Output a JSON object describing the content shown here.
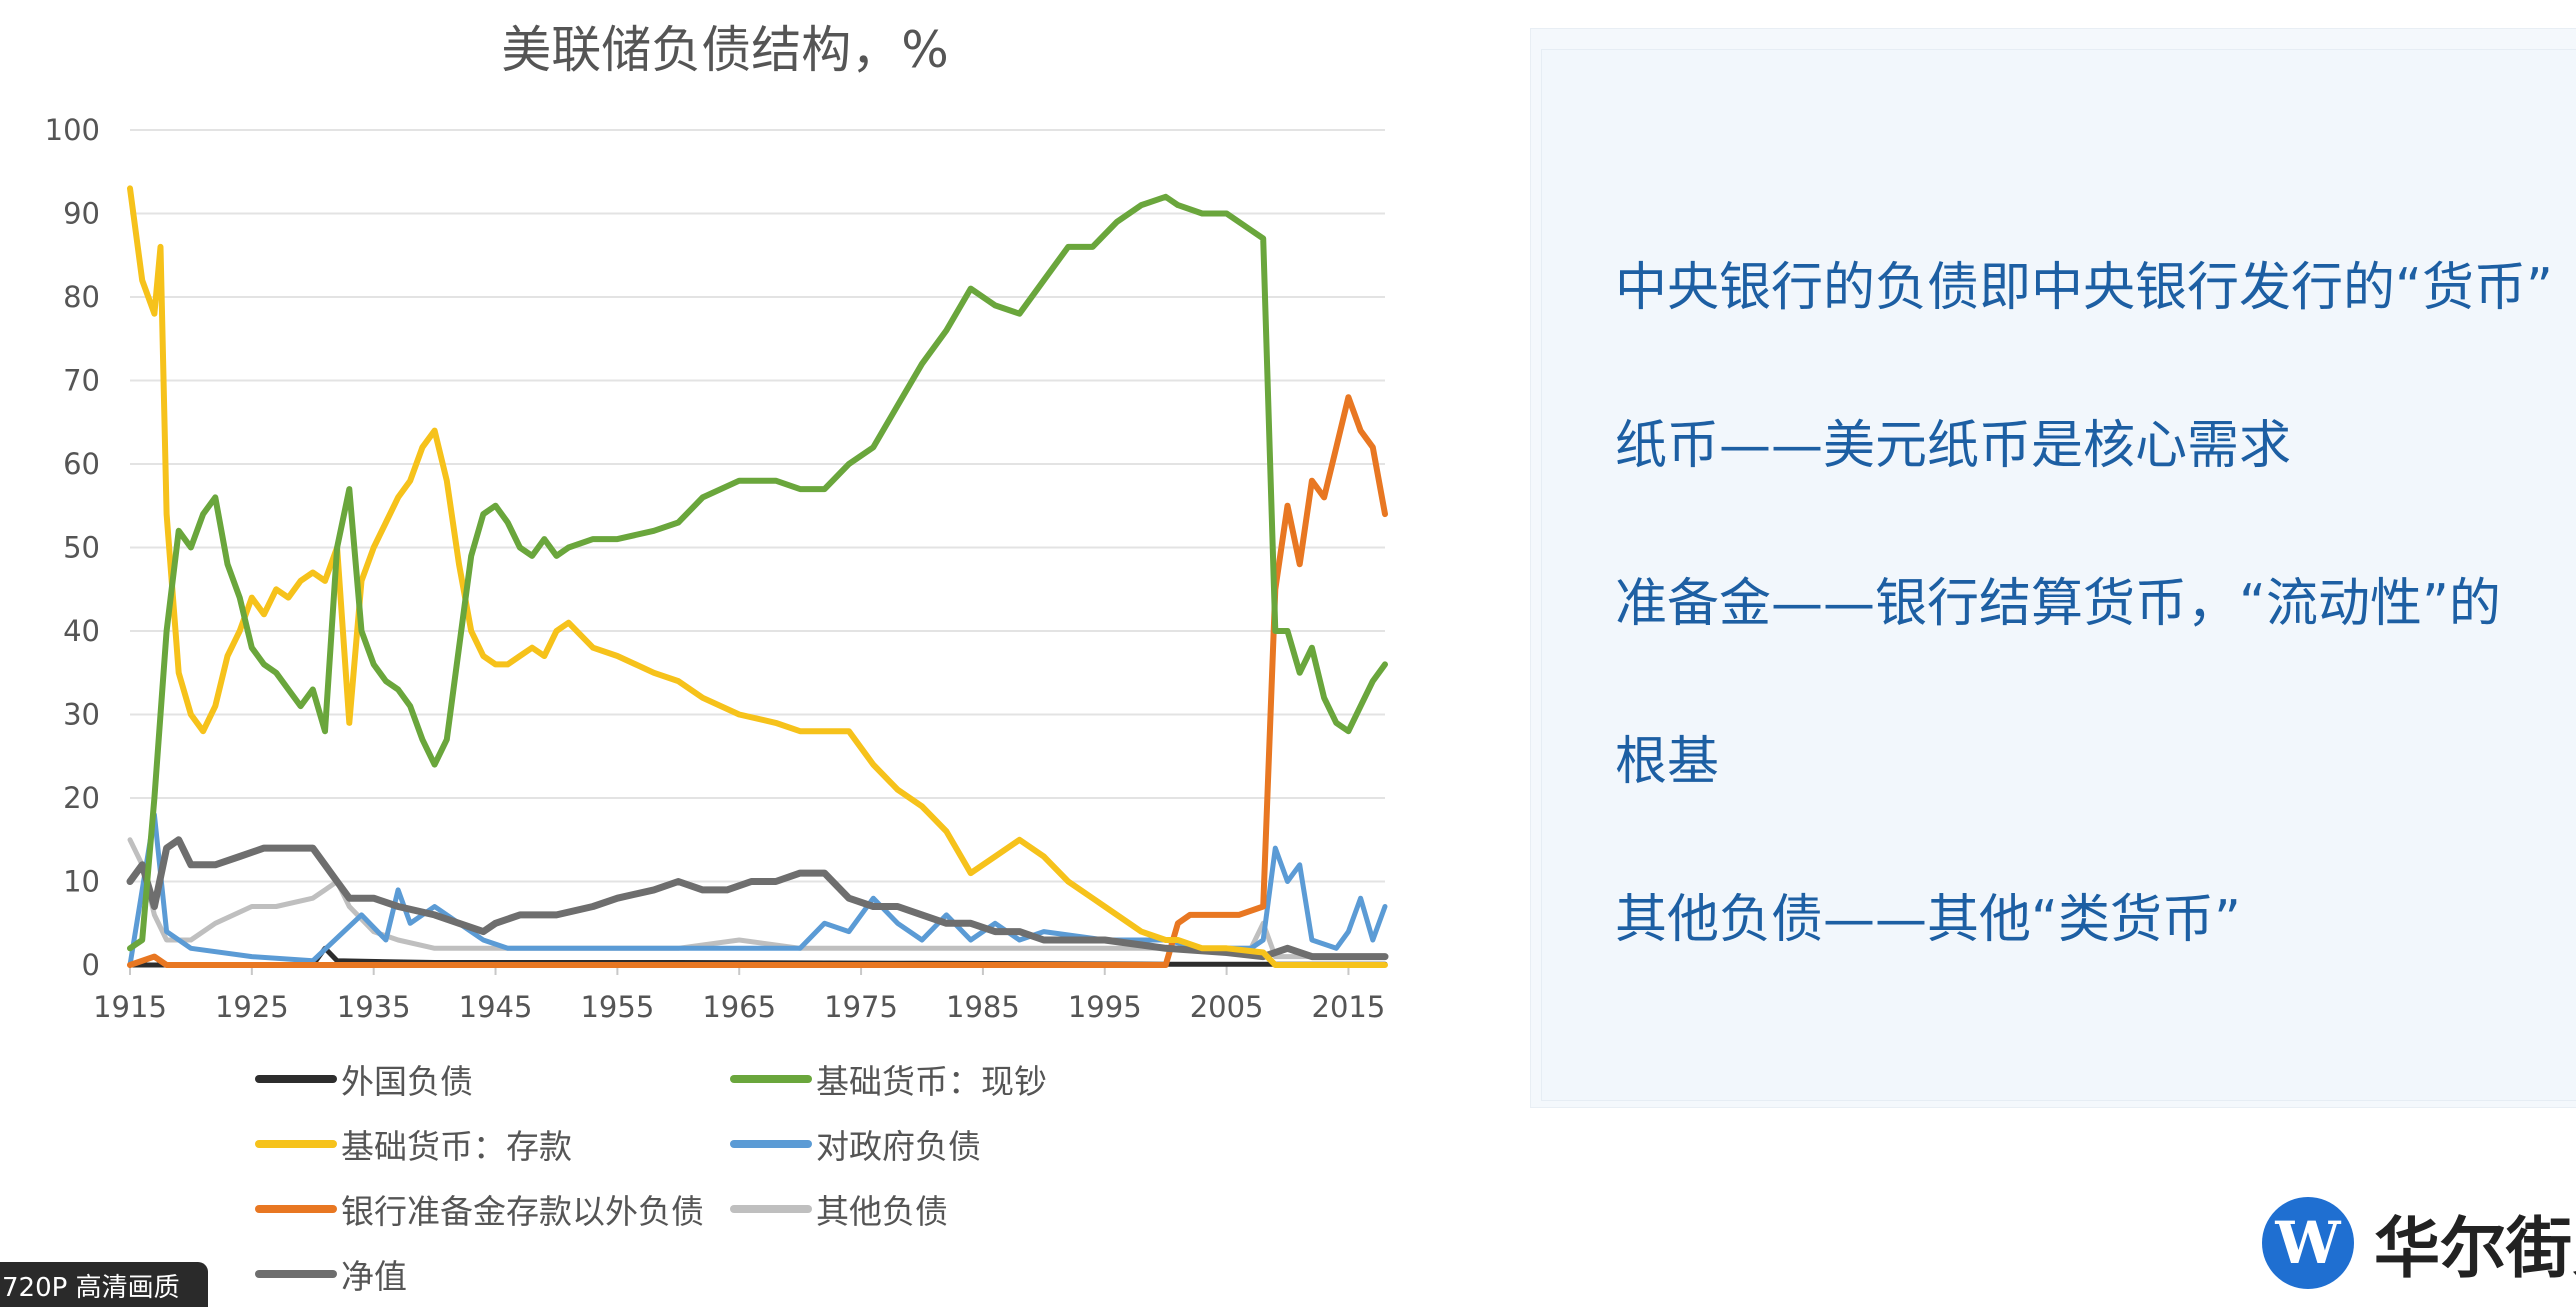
{
  "chart_data": {
    "type": "line",
    "title": "美联储负债结构，%",
    "xlabel": "",
    "ylabel": "",
    "xlim": [
      1915,
      2018
    ],
    "ylim": [
      0,
      100
    ],
    "x_ticks": [
      "1915",
      "1925",
      "1935",
      "1945",
      "1955",
      "1965",
      "1975",
      "1985",
      "1995",
      "2005",
      "2015"
    ],
    "y_ticks": [
      "0",
      "10",
      "20",
      "30",
      "40",
      "50",
      "60",
      "70",
      "80",
      "90",
      "100"
    ],
    "grid": "horizontal",
    "legend_position": "bottom",
    "series": [
      {
        "name": "外国负债",
        "color": "#2d2d2d",
        "points": [
          [
            1915,
            0
          ],
          [
            1930,
            0
          ],
          [
            1931,
            2
          ],
          [
            1932,
            0.5
          ],
          [
            1940,
            0.3
          ],
          [
            1960,
            0.3
          ],
          [
            1980,
            0.2
          ],
          [
            2000,
            0.1
          ],
          [
            2018,
            0.1
          ]
        ]
      },
      {
        "name": "基础货币：现钞",
        "color": "#6aa63c",
        "points": [
          [
            1915,
            2
          ],
          [
            1916,
            3
          ],
          [
            1917,
            20
          ],
          [
            1918,
            40
          ],
          [
            1919,
            52
          ],
          [
            1920,
            50
          ],
          [
            1921,
            54
          ],
          [
            1922,
            56
          ],
          [
            1923,
            48
          ],
          [
            1924,
            44
          ],
          [
            1925,
            38
          ],
          [
            1926,
            36
          ],
          [
            1927,
            35
          ],
          [
            1928,
            33
          ],
          [
            1929,
            31
          ],
          [
            1930,
            33
          ],
          [
            1931,
            28
          ],
          [
            1932,
            50
          ],
          [
            1933,
            57
          ],
          [
            1934,
            40
          ],
          [
            1935,
            36
          ],
          [
            1936,
            34
          ],
          [
            1937,
            33
          ],
          [
            1938,
            31
          ],
          [
            1939,
            27
          ],
          [
            1940,
            24
          ],
          [
            1941,
            27
          ],
          [
            1942,
            38
          ],
          [
            1943,
            49
          ],
          [
            1944,
            54
          ],
          [
            1945,
            55
          ],
          [
            1946,
            53
          ],
          [
            1947,
            50
          ],
          [
            1948,
            49
          ],
          [
            1949,
            51
          ],
          [
            1950,
            49
          ],
          [
            1951,
            50
          ],
          [
            1953,
            51
          ],
          [
            1955,
            51
          ],
          [
            1958,
            52
          ],
          [
            1960,
            53
          ],
          [
            1962,
            56
          ],
          [
            1965,
            58
          ],
          [
            1968,
            58
          ],
          [
            1970,
            57
          ],
          [
            1972,
            57
          ],
          [
            1974,
            60
          ],
          [
            1976,
            62
          ],
          [
            1978,
            67
          ],
          [
            1980,
            72
          ],
          [
            1982,
            76
          ],
          [
            1984,
            81
          ],
          [
            1986,
            79
          ],
          [
            1988,
            78
          ],
          [
            1990,
            82
          ],
          [
            1992,
            86
          ],
          [
            1994,
            86
          ],
          [
            1996,
            89
          ],
          [
            1998,
            91
          ],
          [
            2000,
            92
          ],
          [
            2001,
            91
          ],
          [
            2003,
            90
          ],
          [
            2005,
            90
          ],
          [
            2007,
            88
          ],
          [
            2008,
            87
          ],
          [
            2009,
            40
          ],
          [
            2010,
            40
          ],
          [
            2011,
            35
          ],
          [
            2012,
            38
          ],
          [
            2013,
            32
          ],
          [
            2014,
            29
          ],
          [
            2015,
            28
          ],
          [
            2016,
            31
          ],
          [
            2017,
            34
          ],
          [
            2018,
            36
          ]
        ]
      },
      {
        "name": "基础货币：存款",
        "color": "#f6c21b",
        "points": [
          [
            1915,
            93
          ],
          [
            1916,
            82
          ],
          [
            1917,
            78
          ],
          [
            1917.5,
            86
          ],
          [
            1918,
            54
          ],
          [
            1919,
            35
          ],
          [
            1920,
            30
          ],
          [
            1921,
            28
          ],
          [
            1922,
            31
          ],
          [
            1923,
            37
          ],
          [
            1924,
            40
          ],
          [
            1925,
            44
          ],
          [
            1926,
            42
          ],
          [
            1927,
            45
          ],
          [
            1928,
            44
          ],
          [
            1929,
            46
          ],
          [
            1930,
            47
          ],
          [
            1931,
            46
          ],
          [
            1932,
            50
          ],
          [
            1933,
            29
          ],
          [
            1934,
            46
          ],
          [
            1935,
            50
          ],
          [
            1936,
            53
          ],
          [
            1937,
            56
          ],
          [
            1938,
            58
          ],
          [
            1939,
            62
          ],
          [
            1940,
            64
          ],
          [
            1941,
            58
          ],
          [
            1942,
            48
          ],
          [
            1943,
            40
          ],
          [
            1944,
            37
          ],
          [
            1945,
            36
          ],
          [
            1946,
            36
          ],
          [
            1947,
            37
          ],
          [
            1948,
            38
          ],
          [
            1949,
            37
          ],
          [
            1950,
            40
          ],
          [
            1951,
            41
          ],
          [
            1953,
            38
          ],
          [
            1955,
            37
          ],
          [
            1958,
            35
          ],
          [
            1960,
            34
          ],
          [
            1962,
            32
          ],
          [
            1965,
            30
          ],
          [
            1968,
            29
          ],
          [
            1970,
            28
          ],
          [
            1972,
            28
          ],
          [
            1974,
            28
          ],
          [
            1976,
            24
          ],
          [
            1978,
            21
          ],
          [
            1980,
            19
          ],
          [
            1982,
            16
          ],
          [
            1984,
            11
          ],
          [
            1986,
            13
          ],
          [
            1988,
            15
          ],
          [
            1990,
            13
          ],
          [
            1992,
            10
          ],
          [
            1994,
            8
          ],
          [
            1996,
            6
          ],
          [
            1998,
            4
          ],
          [
            2000,
            3
          ],
          [
            2001,
            3
          ],
          [
            2003,
            2
          ],
          [
            2005,
            2
          ],
          [
            2008,
            1.5
          ],
          [
            2009,
            0
          ],
          [
            2018,
            0
          ]
        ]
      },
      {
        "name": "对政府负债",
        "color": "#5b9bd5",
        "points": [
          [
            1915,
            0
          ],
          [
            1917,
            18
          ],
          [
            1918,
            4
          ],
          [
            1920,
            2
          ],
          [
            1925,
            1
          ],
          [
            1930,
            0.5
          ],
          [
            1934,
            6
          ],
          [
            1936,
            3
          ],
          [
            1937,
            9
          ],
          [
            1938,
            5
          ],
          [
            1940,
            7
          ],
          [
            1942,
            5
          ],
          [
            1944,
            3
          ],
          [
            1946,
            2
          ],
          [
            1950,
            2
          ],
          [
            1955,
            2
          ],
          [
            1960,
            2
          ],
          [
            1965,
            2
          ],
          [
            1970,
            2
          ],
          [
            1972,
            5
          ],
          [
            1974,
            4
          ],
          [
            1976,
            8
          ],
          [
            1978,
            5
          ],
          [
            1980,
            3
          ],
          [
            1982,
            6
          ],
          [
            1984,
            3
          ],
          [
            1986,
            5
          ],
          [
            1988,
            3
          ],
          [
            1990,
            4
          ],
          [
            1995,
            3
          ],
          [
            2000,
            3
          ],
          [
            2003,
            2
          ],
          [
            2007,
            2
          ],
          [
            2008,
            3
          ],
          [
            2009,
            14
          ],
          [
            2010,
            10
          ],
          [
            2011,
            12
          ],
          [
            2012,
            3
          ],
          [
            2014,
            2
          ],
          [
            2015,
            4
          ],
          [
            2016,
            8
          ],
          [
            2017,
            3
          ],
          [
            2018,
            7
          ]
        ]
      },
      {
        "name": "银行准备金存款以外负债",
        "color": "#e87722",
        "points": [
          [
            1915,
            0
          ],
          [
            1917,
            1
          ],
          [
            1918,
            0
          ],
          [
            1930,
            0
          ],
          [
            1960,
            0
          ],
          [
            2000,
            0
          ],
          [
            2001,
            5
          ],
          [
            2002,
            6
          ],
          [
            2004,
            6
          ],
          [
            2006,
            6
          ],
          [
            2008,
            7
          ],
          [
            2009,
            45
          ],
          [
            2010,
            55
          ],
          [
            2011,
            48
          ],
          [
            2012,
            58
          ],
          [
            2013,
            56
          ],
          [
            2014,
            62
          ],
          [
            2015,
            68
          ],
          [
            2016,
            64
          ],
          [
            2017,
            62
          ],
          [
            2018,
            54
          ]
        ]
      },
      {
        "name": "其他负债",
        "color": "#bfbfbf",
        "points": [
          [
            1915,
            15
          ],
          [
            1916,
            12
          ],
          [
            1917,
            6
          ],
          [
            1918,
            3
          ],
          [
            1920,
            3
          ],
          [
            1922,
            5
          ],
          [
            1925,
            7
          ],
          [
            1927,
            7
          ],
          [
            1930,
            8
          ],
          [
            1931,
            9
          ],
          [
            1932,
            10
          ],
          [
            1933,
            7
          ],
          [
            1935,
            4
          ],
          [
            1937,
            3
          ],
          [
            1940,
            2
          ],
          [
            1945,
            2
          ],
          [
            1950,
            2
          ],
          [
            1955,
            2
          ],
          [
            1960,
            2
          ],
          [
            1965,
            3
          ],
          [
            1970,
            2
          ],
          [
            1975,
            2
          ],
          [
            1980,
            2
          ],
          [
            1985,
            2
          ],
          [
            1990,
            2
          ],
          [
            1995,
            2
          ],
          [
            2000,
            2
          ],
          [
            2003,
            2
          ],
          [
            2007,
            2
          ],
          [
            2008,
            5
          ],
          [
            2009,
            1
          ],
          [
            2012,
            1
          ],
          [
            2015,
            1
          ],
          [
            2018,
            1
          ]
        ]
      },
      {
        "name": "净值",
        "color": "#6e6e6e",
        "points": [
          [
            1915,
            10
          ],
          [
            1916,
            12
          ],
          [
            1917,
            7
          ],
          [
            1918,
            14
          ],
          [
            1919,
            15
          ],
          [
            1920,
            12
          ],
          [
            1922,
            12
          ],
          [
            1924,
            13
          ],
          [
            1926,
            14
          ],
          [
            1928,
            14
          ],
          [
            1930,
            14
          ],
          [
            1931,
            12
          ],
          [
            1932,
            10
          ],
          [
            1933,
            8
          ],
          [
            1935,
            8
          ],
          [
            1937,
            7
          ],
          [
            1940,
            6
          ],
          [
            1942,
            5
          ],
          [
            1944,
            4
          ],
          [
            1945,
            5
          ],
          [
            1947,
            6
          ],
          [
            1950,
            6
          ],
          [
            1953,
            7
          ],
          [
            1955,
            8
          ],
          [
            1958,
            9
          ],
          [
            1960,
            10
          ],
          [
            1962,
            9
          ],
          [
            1964,
            9
          ],
          [
            1966,
            10
          ],
          [
            1968,
            10
          ],
          [
            1970,
            11
          ],
          [
            1972,
            11
          ],
          [
            1974,
            8
          ],
          [
            1976,
            7
          ],
          [
            1978,
            7
          ],
          [
            1980,
            6
          ],
          [
            1982,
            5
          ],
          [
            1984,
            5
          ],
          [
            1986,
            4
          ],
          [
            1988,
            4
          ],
          [
            1990,
            3
          ],
          [
            1995,
            3
          ],
          [
            2000,
            2
          ],
          [
            2005,
            1.5
          ],
          [
            2008,
            1
          ],
          [
            2010,
            2
          ],
          [
            2012,
            1
          ],
          [
            2015,
            1
          ],
          [
            2018,
            1
          ]
        ]
      }
    ]
  },
  "panel": {
    "line1": "中央银行的负债即中央银行发行的“货币”",
    "line2": "纸币——美元纸币是核心需求",
    "line3": "准备金——银行结算货币，“流动性”的",
    "line4": "根基",
    "line5": "其他负债——其他“类货币”"
  },
  "badge": {
    "text": "720P 高清画质"
  },
  "logo": {
    "mark": "W",
    "text": "华尔街见闻"
  }
}
